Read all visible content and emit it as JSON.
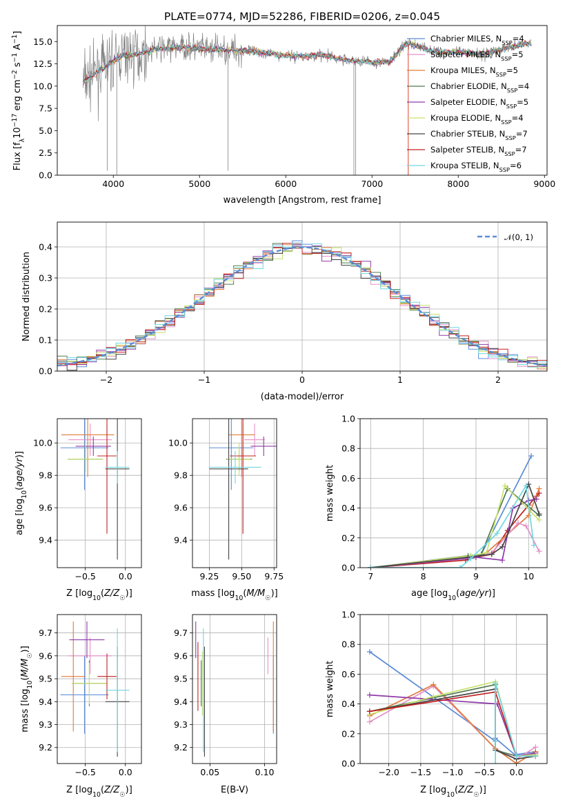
{
  "chart_data": [
    {
      "id": "spectrum",
      "type": "line",
      "title": "PLATE=0774, MJD=52286, FIBERID=0206, z=0.045",
      "xlabel": "wavelength [Angstrom, rest frame]",
      "ylabel": "Flux [f_λ 10^-17 erg cm^-2 s^-1 A^-1]",
      "xlim": [
        3350,
        9030
      ],
      "ylim": [
        0,
        16.8
      ],
      "xticks": [
        4000,
        5000,
        6000,
        7000,
        8000,
        9000
      ],
      "yticks": [
        0.0,
        2.5,
        5.0,
        7.5,
        10.0,
        12.5,
        15.0
      ],
      "data_color": "#808080",
      "legend_position": "right",
      "legend": [
        {
          "label": "Chabrier MILES, N_SSP=4",
          "color": "#5b8bd6"
        },
        {
          "label": "Salpeter MILES, N_SSP=5",
          "color": "#e58fc6"
        },
        {
          "label": "Kroupa MILES, N_SSP=5",
          "color": "#e07b39"
        },
        {
          "label": "Chabrier ELODIE, N_SSP=4",
          "color": "#4f7a4f"
        },
        {
          "label": "Salpeter ELODIE, N_SSP=5",
          "color": "#8e3aa8"
        },
        {
          "label": "Kroupa ELODIE, N_SSP=4",
          "color": "#c9e26e"
        },
        {
          "label": "Chabrier STELIB, N_SSP=7",
          "color": "#444444"
        },
        {
          "label": "Salpeter STELIB, N_SSP=7",
          "color": "#c02020"
        },
        {
          "label": "Kroupa STELIB, N_SSP=6",
          "color": "#6fd6e0"
        }
      ],
      "continuum": [
        [
          3650,
          10.5
        ],
        [
          3800,
          11.5
        ],
        [
          3950,
          12.5
        ],
        [
          4100,
          13.4
        ],
        [
          4300,
          13.6
        ],
        [
          4500,
          14.2
        ],
        [
          4800,
          14.4
        ],
        [
          5000,
          14.2
        ],
        [
          5200,
          14.1
        ],
        [
          5500,
          14.0
        ],
        [
          5800,
          13.7
        ],
        [
          6100,
          13.3
        ],
        [
          6400,
          13.5
        ],
        [
          6700,
          12.9
        ],
        [
          7000,
          12.7
        ],
        [
          7200,
          12.7
        ],
        [
          7400,
          14.8
        ],
        [
          7500,
          14.6
        ],
        [
          7700,
          13.9
        ],
        [
          8000,
          13.8
        ],
        [
          8300,
          13.6
        ],
        [
          8600,
          14.4
        ],
        [
          8800,
          14.8
        ]
      ]
    },
    {
      "id": "residuals",
      "type": "histogram",
      "xlabel": "(data-model)/error",
      "ylabel": "Normed distribution",
      "xlim": [
        -2.5,
        2.5
      ],
      "ylim": [
        0,
        0.48
      ],
      "xticks": [
        -2,
        -1,
        0,
        1,
        2
      ],
      "yticks": [
        0.0,
        0.1,
        0.2,
        0.3,
        0.4
      ],
      "legend": [
        {
          "label": "𝒩(0, 1)",
          "color": "#5b8bd6",
          "style": "dashed"
        }
      ],
      "bins": {
        "start": -2.5,
        "width": 0.1
      }
    },
    {
      "id": "age_vs_Z",
      "type": "errorbar",
      "xlabel": "Z [log10(Z/Z☉)]",
      "ylabel": "age  [log10(age/yr)]",
      "xlim": [
        -0.85,
        0.2
      ],
      "ylim": [
        9.23,
        10.15
      ],
      "xticks": [
        -0.5,
        0.0
      ],
      "yticks": [
        9.4,
        9.6,
        9.8,
        10.0
      ],
      "points": [
        {
          "x": -0.51,
          "xerr": 0.3,
          "y": 9.97,
          "yerr": 0.26,
          "color": "#5b8bd6"
        },
        {
          "x": -0.44,
          "xerr": 0.27,
          "y": 10.02,
          "yerr": 0.1,
          "color": "#e58fc6"
        },
        {
          "x": -0.47,
          "xerr": 0.33,
          "y": 10.05,
          "yerr": 0.26,
          "color": "#e07b39"
        },
        {
          "x": -0.5,
          "xerr": 0.22,
          "y": 9.9,
          "yerr": 0.08,
          "color": "#4f7a4f"
        },
        {
          "x": -0.4,
          "xerr": 0.22,
          "y": 9.98,
          "yerr": 0.06,
          "color": "#8e3aa8"
        },
        {
          "x": -0.5,
          "xerr": 0.22,
          "y": 9.9,
          "yerr": 0.1,
          "color": "#c9e26e"
        },
        {
          "x": -0.1,
          "xerr": 0.15,
          "y": 9.84,
          "yerr": 0.56,
          "color": "#444444"
        },
        {
          "x": -0.23,
          "xerr": 0.12,
          "y": 9.92,
          "yerr": 0.48,
          "color": "#c02020"
        },
        {
          "x": -0.1,
          "xerr": 0.15,
          "y": 9.85,
          "yerr": 0.1,
          "color": "#6fd6e0"
        }
      ]
    },
    {
      "id": "age_vs_mass",
      "type": "errorbar",
      "xlabel": "mass [log10(M/M☉)]",
      "xlim": [
        9.12,
        9.77
      ],
      "ylim": [
        9.23,
        10.15
      ],
      "xticks": [
        9.25,
        9.5,
        9.75
      ],
      "yticks": [
        9.4,
        9.6,
        9.8,
        10.0
      ],
      "points": [
        {
          "x": 9.42,
          "xerr": 0.17,
          "y": 9.97,
          "yerr": 0.26,
          "color": "#5b8bd6"
        },
        {
          "x": 9.6,
          "xerr": 0.08,
          "y": 10.02,
          "yerr": 0.1,
          "color": "#e58fc6"
        },
        {
          "x": 9.5,
          "xerr": 0.1,
          "y": 10.05,
          "yerr": 0.26,
          "color": "#e07b39"
        },
        {
          "x": 9.48,
          "xerr": 0.1,
          "y": 9.9,
          "yerr": 0.08,
          "color": "#4f7a4f"
        },
        {
          "x": 9.67,
          "xerr": 0.1,
          "y": 9.98,
          "yerr": 0.06,
          "color": "#8e3aa8"
        },
        {
          "x": 9.48,
          "xerr": 0.09,
          "y": 9.9,
          "yerr": 0.1,
          "color": "#c9e26e"
        },
        {
          "x": 9.4,
          "xerr": 0.15,
          "y": 9.84,
          "yerr": 0.56,
          "color": "#444444"
        },
        {
          "x": 9.51,
          "xerr": 0.1,
          "y": 9.92,
          "yerr": 0.48,
          "color": "#c02020"
        },
        {
          "x": 9.45,
          "xerr": 0.2,
          "y": 9.85,
          "yerr": 0.1,
          "color": "#6fd6e0"
        }
      ]
    },
    {
      "id": "weight_vs_age",
      "type": "line",
      "xlabel": "age  [log10(age/yr)]",
      "ylabel": "mass weight",
      "xlim": [
        6.8,
        10.35
      ],
      "ylim": [
        0,
        1.0
      ],
      "xticks": [
        7,
        8,
        9,
        10
      ],
      "yticks": [
        0.0,
        0.2,
        0.4,
        0.6,
        0.8,
        1.0
      ],
      "series": [
        {
          "color": "#c02020",
          "x": [
            7.0,
            8.8,
            9.0,
            9.3,
            9.6,
            10.0,
            10.15,
            10.2
          ],
          "y": [
            0.0,
            0.05,
            0.07,
            0.09,
            0.25,
            0.42,
            0.48,
            0.5
          ]
        },
        {
          "color": "#e07b39",
          "x": [
            7.0,
            8.9,
            9.2,
            10.0,
            10.2
          ],
          "y": [
            0.0,
            0.07,
            0.1,
            0.35,
            0.53
          ]
        },
        {
          "color": "#8e3aa8",
          "x": [
            7.0,
            8.8,
            9.0,
            9.5,
            9.7,
            10.0,
            10.15
          ],
          "y": [
            0.0,
            0.06,
            0.07,
            0.05,
            0.4,
            0.45,
            0.46
          ]
        },
        {
          "color": "#e58fc6",
          "x": [
            7.0,
            8.9,
            9.3,
            9.8,
            9.95,
            10.2
          ],
          "y": [
            0.0,
            0.07,
            0.1,
            0.3,
            0.28,
            0.11
          ]
        },
        {
          "color": "#5b8bd6",
          "x": [
            7.0,
            8.9,
            9.1,
            10.05
          ],
          "y": [
            0.0,
            0.08,
            0.09,
            0.75
          ]
        },
        {
          "color": "#4f7a4f",
          "x": [
            7.0,
            8.85,
            9.1,
            9.6,
            10.2
          ],
          "y": [
            0.0,
            0.08,
            0.09,
            0.53,
            0.35
          ]
        },
        {
          "color": "#c9e26e",
          "x": [
            7.0,
            8.9,
            9.2,
            9.55,
            10.2
          ],
          "y": [
            0.0,
            0.08,
            0.1,
            0.55,
            0.32
          ]
        },
        {
          "color": "#444444",
          "x": [
            7.0,
            8.85,
            9.3,
            9.5,
            10.0,
            10.2
          ],
          "y": [
            0.0,
            0.07,
            0.09,
            0.14,
            0.56,
            0.36
          ]
        },
        {
          "color": "#6fd6e0",
          "x": [
            7.0,
            8.7,
            8.9,
            9.4,
            9.95,
            10.1
          ],
          "y": [
            0.0,
            0.0,
            0.06,
            0.23,
            0.55,
            0.15
          ]
        }
      ]
    },
    {
      "id": "mass_vs_Z",
      "type": "errorbar",
      "xlabel": "Z [log10(Z/Z☉)]",
      "ylabel": "mass [log10(M/M☉)]",
      "xlim": [
        -0.85,
        0.2
      ],
      "ylim": [
        9.13,
        9.78
      ],
      "xticks": [
        -0.5,
        0.0
      ],
      "yticks": [
        9.2,
        9.3,
        9.4,
        9.5,
        9.6,
        9.7
      ],
      "points": [
        {
          "x": -0.51,
          "xerr": 0.3,
          "y": 9.43,
          "yerr": 0.17,
          "color": "#5b8bd6"
        },
        {
          "x": -0.44,
          "xerr": 0.27,
          "y": 9.6,
          "yerr": 0.08,
          "color": "#e58fc6"
        },
        {
          "x": -0.65,
          "xerr": 0.15,
          "y": 9.51,
          "yerr": 0.24,
          "color": "#e07b39"
        },
        {
          "x": -0.45,
          "xerr": 0.22,
          "y": 9.48,
          "yerr": 0.1,
          "color": "#4f7a4f"
        },
        {
          "x": -0.48,
          "xerr": 0.22,
          "y": 9.67,
          "yerr": 0.08,
          "color": "#8e3aa8"
        },
        {
          "x": -0.45,
          "xerr": 0.22,
          "y": 9.48,
          "yerr": 0.09,
          "color": "#c9e26e"
        },
        {
          "x": -0.1,
          "xerr": 0.15,
          "y": 9.4,
          "yerr": 0.24,
          "color": "#444444"
        },
        {
          "x": -0.23,
          "xerr": 0.12,
          "y": 9.51,
          "yerr": 0.1,
          "color": "#c02020"
        },
        {
          "x": -0.1,
          "xerr": 0.15,
          "y": 9.45,
          "yerr": 0.27,
          "color": "#6fd6e0"
        }
      ]
    },
    {
      "id": "mass_vs_EBV",
      "type": "errorbar",
      "xlabel": "E(B-V)",
      "xlim": [
        0.034,
        0.111
      ],
      "ylim": [
        9.13,
        9.78
      ],
      "xticks": [
        0.05,
        0.1
      ],
      "yticks": [
        9.2,
        9.3,
        9.4,
        9.5,
        9.6,
        9.7
      ],
      "points": [
        {
          "x": 0.108,
          "xerr": 0.0,
          "y": 9.43,
          "yerr": 0.17,
          "color": "#5b8bd6"
        },
        {
          "x": 0.103,
          "xerr": 0.0,
          "y": 9.6,
          "yerr": 0.08,
          "color": "#e58fc6"
        },
        {
          "x": 0.108,
          "xerr": 0.0,
          "y": 9.51,
          "yerr": 0.24,
          "color": "#e07b39"
        },
        {
          "x": 0.042,
          "xerr": 0.0,
          "y": 9.48,
          "yerr": 0.1,
          "color": "#4f7a4f"
        },
        {
          "x": 0.037,
          "xerr": 0.0,
          "y": 9.67,
          "yerr": 0.08,
          "color": "#8e3aa8"
        },
        {
          "x": 0.043,
          "xerr": 0.0,
          "y": 9.48,
          "yerr": 0.14,
          "color": "#c9e26e"
        },
        {
          "x": 0.045,
          "xerr": 0.0,
          "y": 9.4,
          "yerr": 0.24,
          "color": "#444444"
        },
        {
          "x": 0.039,
          "xerr": 0.0,
          "y": 9.51,
          "yerr": 0.15,
          "color": "#c02020"
        },
        {
          "x": 0.044,
          "xerr": 0.0,
          "y": 9.45,
          "yerr": 0.27,
          "color": "#6fd6e0"
        }
      ]
    },
    {
      "id": "weight_vs_Z",
      "type": "line",
      "xlabel": "Z [log10(Z/Z☉)]",
      "ylabel": "mass weight",
      "xlim": [
        -2.45,
        0.48
      ],
      "ylim": [
        0,
        1.0
      ],
      "xticks": [
        -2.0,
        -1.5,
        -1.0,
        -0.5,
        0.0
      ],
      "yticks": [
        0.0,
        0.2,
        0.4,
        0.6,
        0.8,
        1.0
      ],
      "series": [
        {
          "color": "#5b8bd6",
          "x": [
            -2.3,
            -0.33,
            -0.33,
            0.0,
            0.0,
            0.3
          ],
          "y": [
            0.75,
            0.15,
            0.17,
            0.05,
            0.06,
            0.08
          ]
        },
        {
          "color": "#e58fc6",
          "x": [
            -2.3,
            -1.3,
            -0.33,
            0.0,
            0.3
          ],
          "y": [
            0.28,
            0.52,
            0.1,
            0.03,
            0.11
          ]
        },
        {
          "color": "#e07b39",
          "x": [
            -2.3,
            -1.3,
            -0.33,
            0.0,
            0.3
          ],
          "y": [
            0.32,
            0.53,
            0.1,
            0.0,
            0.08
          ]
        },
        {
          "color": "#4f7a4f",
          "x": [
            -2.3,
            -0.33,
            -0.33,
            0.0,
            0.3
          ],
          "y": [
            0.35,
            0.53,
            0.09,
            0.05,
            0.06
          ]
        },
        {
          "color": "#8e3aa8",
          "x": [
            -2.3,
            -0.3,
            0.0,
            0.3
          ],
          "y": [
            0.46,
            0.4,
            0.05,
            0.07
          ]
        },
        {
          "color": "#c9e26e",
          "x": [
            -2.3,
            -1.3,
            -0.33,
            0.0,
            0.3
          ],
          "y": [
            0.33,
            0.45,
            0.55,
            0.05,
            0.06
          ]
        },
        {
          "color": "#444444",
          "x": [
            -2.3,
            -0.33,
            -0.33,
            0.0,
            0.3
          ],
          "y": [
            0.35,
            0.5,
            0.09,
            0.03,
            0.05
          ]
        },
        {
          "color": "#c02020",
          "x": [
            -2.3,
            -0.33,
            0.0,
            0.3
          ],
          "y": [
            0.35,
            0.48,
            0.05,
            0.05
          ]
        },
        {
          "color": "#6fd6e0",
          "x": [
            -0.33,
            -0.33,
            -0.33,
            0.0,
            0.3
          ],
          "y": [
            0.0,
            0.15,
            0.54,
            0.05,
            0.05
          ]
        }
      ]
    }
  ]
}
